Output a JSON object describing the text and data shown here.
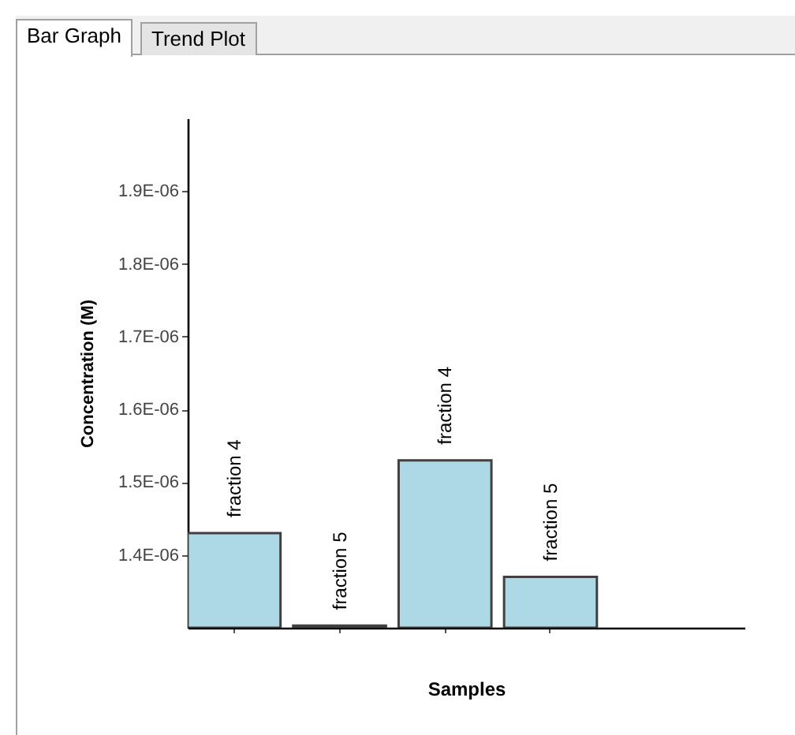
{
  "chart_data": {
    "type": "bar",
    "xlabel": "Samples",
    "ylabel": "Concentration (M)",
    "categories": [
      null,
      null,
      null,
      null,
      null
    ],
    "value_labels": [
      "fraction 4",
      "fraction 5",
      "fraction 4",
      "fraction 5",
      null
    ],
    "values": [
      1.43e-06,
      1.303e-06,
      1.53e-06,
      1.37e-06,
      null
    ],
    "colors": [
      "#add8e6",
      "#add8e6",
      "#add8e6",
      "#add8e6",
      "#add8e6"
    ],
    "ylim": [
      1.3e-06,
      2e-06
    ],
    "yticks": [
      {
        "value": 1.4e-06,
        "label": "1.4E-06"
      },
      {
        "value": 1.5e-06,
        "label": "1.5E-06"
      },
      {
        "value": 1.6e-06,
        "label": "1.6E-06"
      },
      {
        "value": 1.7e-06,
        "label": "1.7E-06"
      },
      {
        "value": 1.8e-06,
        "label": "1.8E-06"
      },
      {
        "value": 1.9e-06,
        "label": "1.9E-06"
      }
    ],
    "grid": false,
    "annotations": [
      "Bar Graph",
      "Trend Plot"
    ]
  }
}
